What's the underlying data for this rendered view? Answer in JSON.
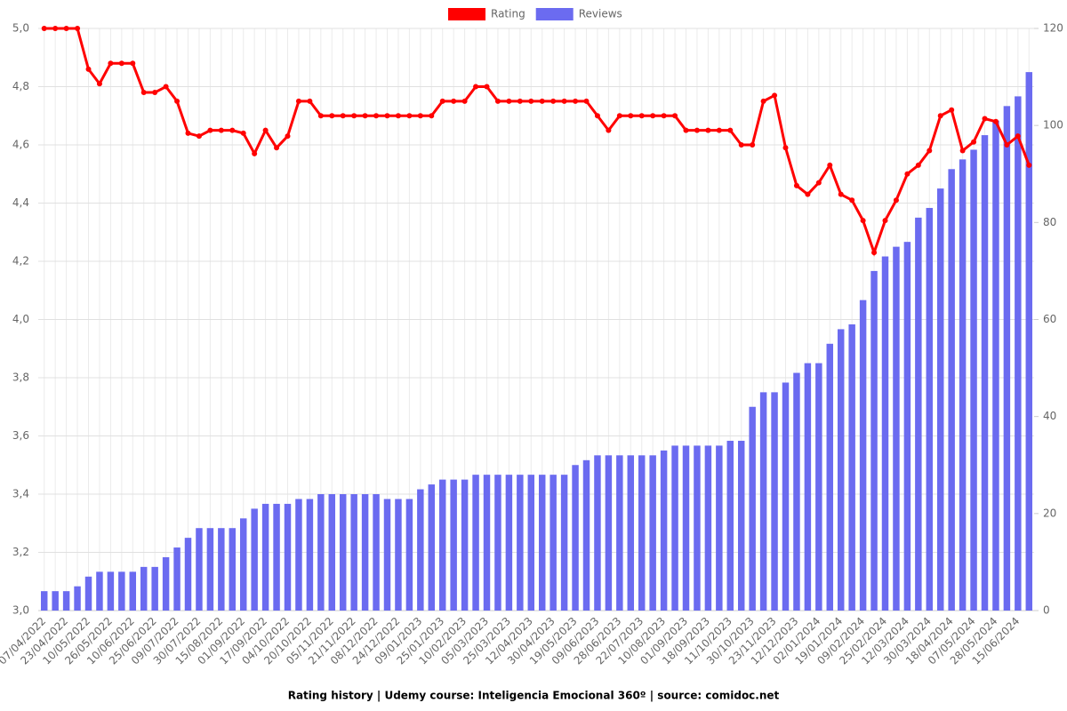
{
  "chart_data": {
    "type": "bar-line",
    "title": "Rating history | Udemy course: Inteligencia Emocional 360º | source: comidoc.net",
    "categories": [
      "07/04/2022",
      null,
      "23/04/2022",
      null,
      "10/05/2022",
      null,
      "26/05/2022",
      null,
      "10/06/2022",
      null,
      "25/06/2022",
      null,
      "09/07/2022",
      null,
      "30/07/2022",
      null,
      "15/08/2022",
      null,
      "01/09/2022",
      null,
      "17/09/2022",
      null,
      "04/10/2022",
      null,
      "20/10/2022",
      null,
      "05/11/2022",
      null,
      "21/11/2022",
      null,
      "08/12/2022",
      null,
      "24/12/2022",
      null,
      "09/01/2023",
      null,
      "25/01/2023",
      null,
      "10/02/2023",
      null,
      "05/03/2023",
      null,
      "25/03/2023",
      null,
      "12/04/2023",
      null,
      "30/04/2023",
      null,
      "19/05/2023",
      null,
      "09/06/2023",
      null,
      "28/06/2023",
      null,
      "22/07/2023",
      null,
      "10/08/2023",
      null,
      "01/09/2023",
      null,
      "18/09/2023",
      null,
      "11/10/2023",
      null,
      "30/10/2023",
      null,
      "23/11/2023",
      null,
      "12/12/2023",
      null,
      "02/01/2024",
      null,
      "19/01/2024",
      null,
      "09/02/2024",
      null,
      "25/02/2024",
      null,
      "12/03/2024",
      null,
      "30/03/2024",
      null,
      "18/04/2024",
      null,
      "07/05/2024",
      null,
      "28/05/2024",
      null,
      "15/06/2024",
      null
    ],
    "series": [
      {
        "name": "Rating",
        "color": "#ff0000",
        "kind": "line",
        "axis": "y",
        "values": [
          5.0,
          5.0,
          5.0,
          5.0,
          4.86,
          4.81,
          4.88,
          4.88,
          4.88,
          4.78,
          4.78,
          4.8,
          4.75,
          4.64,
          4.63,
          4.65,
          4.65,
          4.65,
          4.64,
          4.57,
          4.65,
          4.59,
          4.63,
          4.75,
          4.75,
          4.7,
          4.7,
          4.7,
          4.7,
          4.7,
          4.7,
          4.7,
          4.7,
          4.7,
          4.7,
          4.7,
          4.75,
          4.75,
          4.75,
          4.8,
          4.8,
          4.75,
          4.75,
          4.75,
          4.75,
          4.75,
          4.75,
          4.75,
          4.75,
          4.75,
          4.7,
          4.65,
          4.7,
          4.7,
          4.7,
          4.7,
          4.7,
          4.7,
          4.65,
          4.65,
          4.65,
          4.65,
          4.65,
          4.6,
          4.6,
          4.75,
          4.77,
          4.59,
          4.46,
          4.43,
          4.47,
          4.53,
          4.43,
          4.41,
          4.34,
          4.23,
          4.34,
          4.41,
          4.5,
          4.53,
          4.58,
          4.7,
          4.72,
          4.58,
          4.61,
          4.69,
          4.68,
          4.6,
          4.63,
          4.53
        ]
      },
      {
        "name": "Reviews",
        "color": "#6b6bf0",
        "kind": "bar",
        "axis": "y2",
        "values": [
          4,
          4,
          4,
          5,
          7,
          8,
          8,
          8,
          8,
          9,
          9,
          11,
          13,
          15,
          17,
          17,
          17,
          17,
          19,
          21,
          22,
          22,
          22,
          23,
          23,
          24,
          24,
          24,
          24,
          24,
          24,
          23,
          23,
          23,
          25,
          26,
          27,
          27,
          27,
          28,
          28,
          28,
          28,
          28,
          28,
          28,
          28,
          28,
          30,
          31,
          32,
          32,
          32,
          32,
          32,
          32,
          33,
          34,
          34,
          34,
          34,
          34,
          35,
          35,
          42,
          45,
          45,
          47,
          49,
          51,
          51,
          55,
          58,
          59,
          64,
          70,
          73,
          75,
          76,
          81,
          83,
          87,
          91,
          93,
          95,
          98,
          101,
          104,
          106,
          111
        ]
      }
    ],
    "ylim": [
      3.0,
      5.0
    ],
    "yticks": [
      {
        "value": 3.0,
        "label": "3,0"
      },
      {
        "value": 3.2,
        "label": "3,2"
      },
      {
        "value": 3.4,
        "label": "3,4"
      },
      {
        "value": 3.6,
        "label": "3,6"
      },
      {
        "value": 3.8,
        "label": "3,8"
      },
      {
        "value": 4.0,
        "label": "4,0"
      },
      {
        "value": 4.2,
        "label": "4,2"
      },
      {
        "value": 4.4,
        "label": "4,4"
      },
      {
        "value": 4.6,
        "label": "4,6"
      },
      {
        "value": 4.8,
        "label": "4,8"
      },
      {
        "value": 5.0,
        "label": "5,0"
      }
    ],
    "y2lim": [
      0,
      120
    ],
    "y2ticks": [
      0,
      20,
      40,
      60,
      80,
      100,
      120
    ],
    "grid": true,
    "legend": "top"
  }
}
